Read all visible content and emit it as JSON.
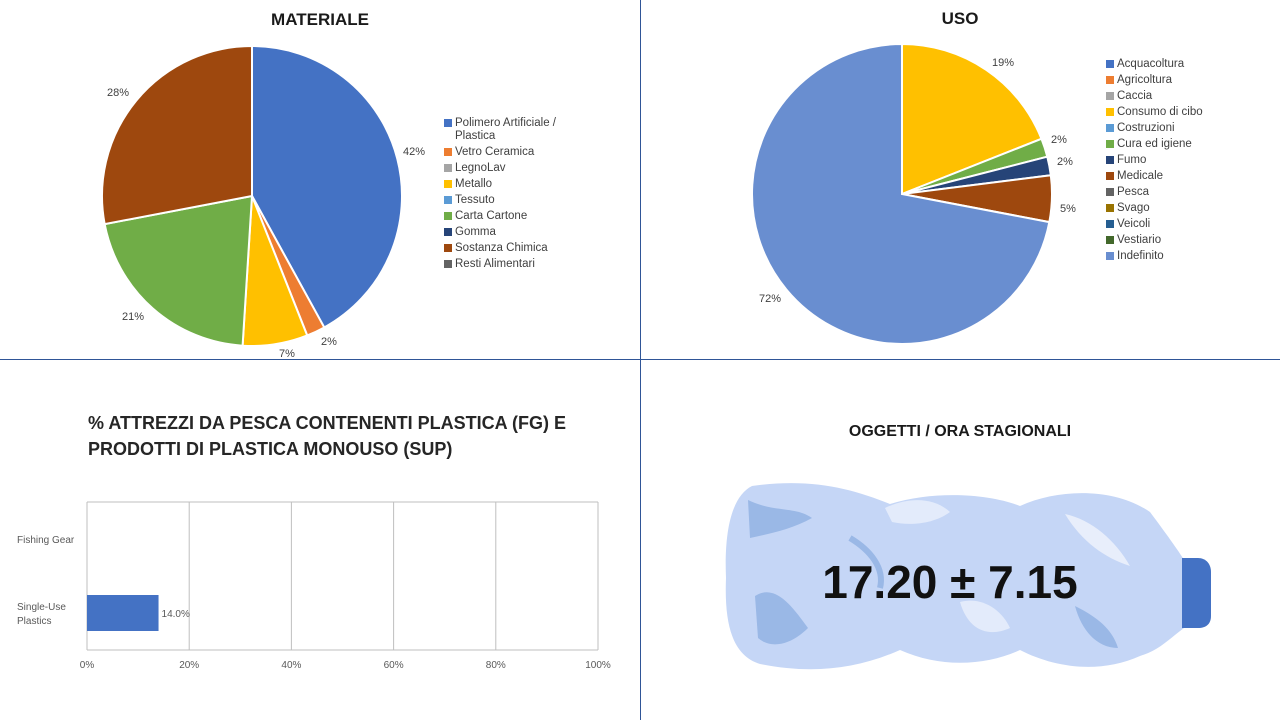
{
  "colors": {
    "divider": "#2f5597"
  },
  "chart_data": [
    {
      "type": "pie",
      "title": "MATERIALE",
      "categories": [
        "Polimero Artificiale / Plastica",
        "Vetro Ceramica",
        "LegnoLav",
        "Metallo",
        "Tessuto",
        "Carta Cartone",
        "Gomma",
        "Sostanza Chimica",
        "Resti Alimentari"
      ],
      "values": [
        42,
        2,
        0,
        7,
        0,
        21,
        0,
        28,
        0
      ],
      "data_labels": [
        "42%",
        "2%",
        "",
        "7%",
        "",
        "21%",
        "",
        "28%",
        ""
      ],
      "colors": [
        "#4472c4",
        "#ed7d31",
        "#a5a5a5",
        "#ffc000",
        "#5b9bd5",
        "#70ad47",
        "#264478",
        "#9e480e",
        "#636363"
      ],
      "legend": "right"
    },
    {
      "type": "pie",
      "title": "USO",
      "categories": [
        "Acquacoltura",
        "Agricoltura",
        "Caccia",
        "Consumo di cibo",
        "Costruzioni",
        "Cura ed igiene",
        "Fumo",
        "Medicale",
        "Pesca",
        "Svago",
        "Veicoli",
        "Vestiario",
        "Indefinito"
      ],
      "values": [
        0,
        0,
        0,
        19,
        0,
        2,
        2,
        5,
        0,
        0,
        0,
        0,
        72
      ],
      "data_labels": [
        "",
        "",
        "",
        "19%",
        "",
        "2%",
        "2%",
        "5%",
        "",
        "",
        "",
        "",
        "72%"
      ],
      "colors": [
        "#4472c4",
        "#ed7d31",
        "#a5a5a5",
        "#ffc000",
        "#5b9bd5",
        "#70ad47",
        "#264478",
        "#9e480e",
        "#636363",
        "#997300",
        "#255e91",
        "#43682b",
        "#698ed0"
      ],
      "legend": "right"
    },
    {
      "type": "bar",
      "orientation": "horizontal",
      "title": "% ATTREZZI DA PESCA CONTENENTI PLASTICA (FG) E PRODOTTI DI PLASTICA MONOUSO (SUP)",
      "categories": [
        "Fishing Gear",
        "Single-Use Plastics"
      ],
      "category_labels": [
        [
          "Fishing Gear"
        ],
        [
          "Single-Use",
          "Plastics"
        ]
      ],
      "values": [
        0,
        14
      ],
      "data_labels": [
        "",
        "14.0%"
      ],
      "xlim": [
        0,
        100
      ],
      "ticks": [
        0,
        20,
        40,
        60,
        80,
        100
      ],
      "tick_labels": [
        "0%",
        "20%",
        "40%",
        "60%",
        "80%",
        "100%"
      ],
      "bar_color": "#4472c4",
      "grid": true
    }
  ],
  "stat_panel": {
    "title": "OGGETTI / ORA STAGIONALI",
    "value": "17.20 ± 7.15"
  }
}
